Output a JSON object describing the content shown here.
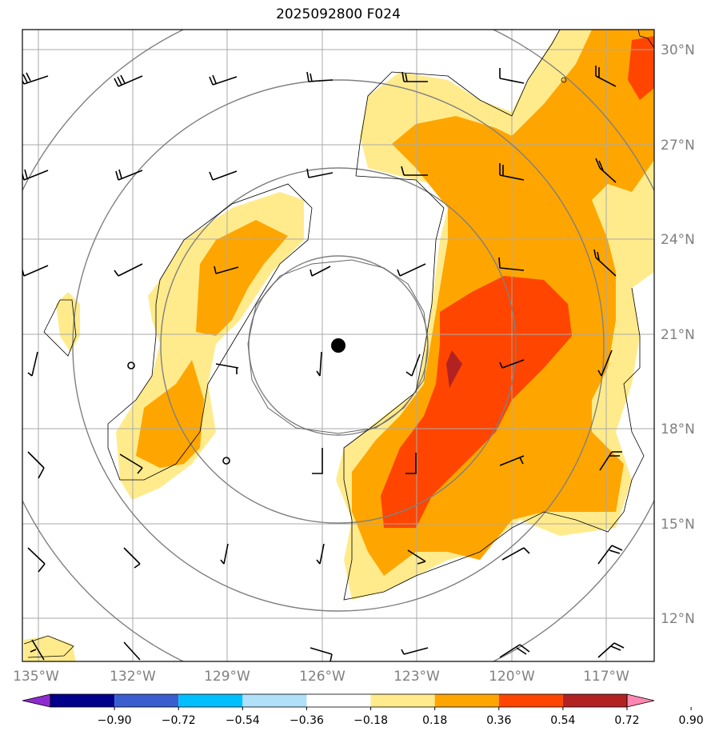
{
  "title": "2025092800 F024",
  "lon_labels": [
    "135°W",
    "132°W",
    "129°W",
    "126°W",
    "123°W",
    "120°W",
    "117°W"
  ],
  "lat_labels": [
    "30°N",
    "27°N",
    "24°N",
    "21°N",
    "18°N",
    "15°N",
    "12°N"
  ],
  "colorbar": {
    "ticks": [
      "−0.90",
      "−0.72",
      "−0.54",
      "−0.36",
      "−0.18",
      "0.18",
      "0.36",
      "0.54",
      "0.72",
      "0.90"
    ],
    "colors": [
      "#8e2bd0",
      "#00008b",
      "#3a5ed0",
      "#00bfff",
      "#b0e0fa",
      "#ffffff",
      "#ffeb8c",
      "#ffa500",
      "#ff4500",
      "#b22222",
      "#ff87b0"
    ]
  },
  "map_colors": {
    "level_018": "#ffeb8c",
    "level_036": "#ffa500",
    "level_054": "#ff4500",
    "level_072": "#b22222"
  },
  "storm_center": {
    "label": "center-marker"
  }
}
